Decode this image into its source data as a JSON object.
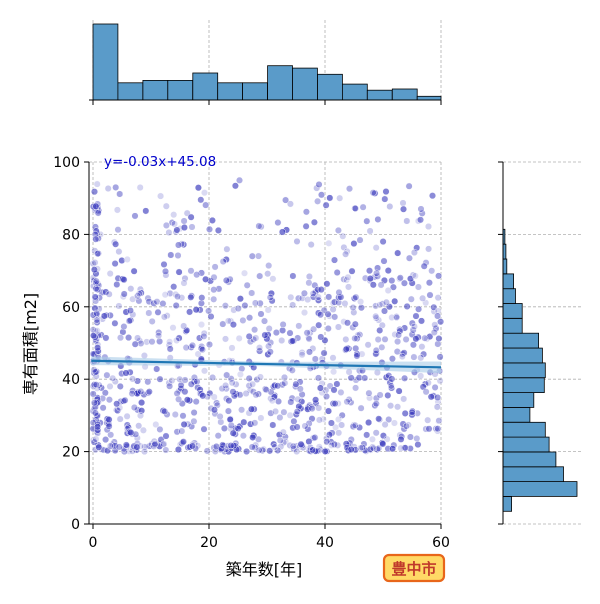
{
  "chart_data": {
    "type": "scatter",
    "xlabel": "築年数[年]",
    "ylabel": "専有面積[m2]",
    "xlim": [
      -1,
      60
    ],
    "ylim": [
      0,
      100
    ],
    "x_ticks": [
      0,
      20,
      40,
      60
    ],
    "y_ticks": [
      0,
      20,
      40,
      60,
      80,
      100
    ],
    "grid": true,
    "regression": {
      "label": "y=-0.03x+45.08",
      "slope": -0.03,
      "intercept": 45.08,
      "color": "#1f77b4",
      "band_color": "#a9cce8",
      "label_color": "#0000cc"
    },
    "point_color": "#3333bb",
    "hist_color": "#5a9bc9",
    "top_histogram": {
      "bin_width": 4.3,
      "counts": [
        62,
        14,
        16,
        16,
        22,
        14,
        14,
        28,
        26,
        21,
        13,
        8,
        9,
        3
      ]
    },
    "right_histogram": {
      "bin_start": 3.5,
      "bin_width": 4.1,
      "counts": [
        9,
        77,
        63,
        55,
        48,
        44,
        28,
        32,
        43,
        44,
        41,
        37,
        20,
        20,
        13,
        11,
        4,
        3,
        2,
        0,
        0,
        0,
        0,
        0
      ]
    },
    "badge": {
      "text": "豊中市",
      "bg": "#ffd966",
      "border": "#e8661a",
      "text_color": "#c0392b"
    }
  }
}
